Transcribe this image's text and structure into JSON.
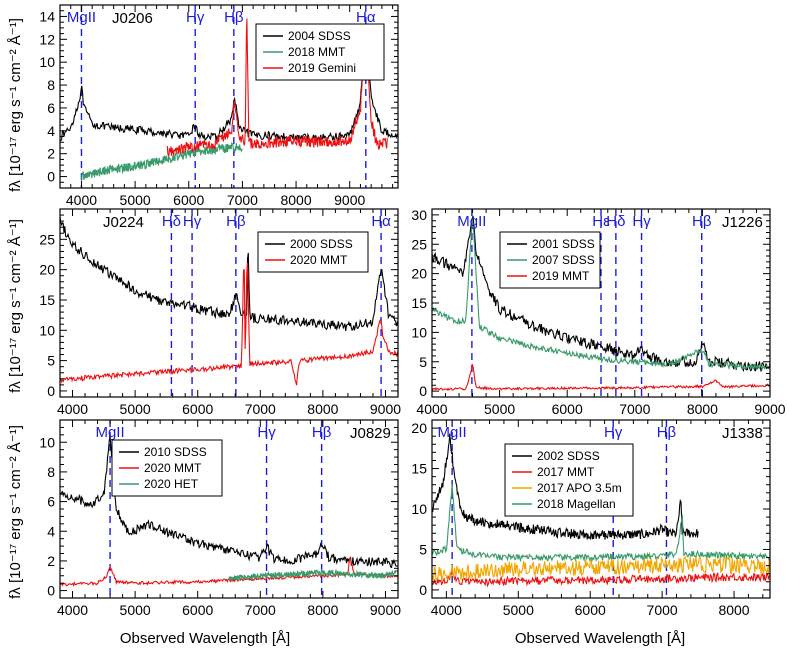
{
  "figure": {
    "xlabel": "Observed Wavelength [Å]",
    "ylabel": "fλ [10⁻¹⁷ erg s⁻¹ cm⁻² Å⁻¹]"
  },
  "colors": {
    "SDSS": "#000000",
    "MMT": "#ee1010",
    "HET": "#3a9a6a",
    "Gemini": "#ee1010",
    "APO": "#f2a600",
    "Magellan": "#3a9a6a",
    "line": "#1c1cdc"
  },
  "chart_data": [
    {
      "type": "line",
      "name": "J0206",
      "xlim": [
        3600,
        9900
      ],
      "ylim": [
        -1,
        15
      ],
      "xticks": [
        4000,
        5000,
        6000,
        7000,
        8000,
        9000
      ],
      "yticks": [
        0,
        2,
        4,
        6,
        8,
        10,
        12,
        14
      ],
      "lines": [
        {
          "label": "MgII",
          "x": 4000
        },
        {
          "label": "Hγ",
          "x": 6120
        },
        {
          "label": "Hβ",
          "x": 6840
        },
        {
          "label": "Hα",
          "x": 9300
        }
      ],
      "series": [
        {
          "name": "2004 SDSS",
          "color": "#000000",
          "x": [
            3600,
            3800,
            3950,
            4000,
            4050,
            4200,
            4500,
            5000,
            5500,
            6000,
            6100,
            6200,
            6500,
            6800,
            6850,
            6950,
            7200,
            7500,
            8000,
            8500,
            9000,
            9200,
            9300,
            9400,
            9600,
            9900
          ],
          "y": [
            3.4,
            4.3,
            6.5,
            7.8,
            6.0,
            4.6,
            4.3,
            4.1,
            3.8,
            3.5,
            4.5,
            3.6,
            3.4,
            5.0,
            7.0,
            4.1,
            3.6,
            3.6,
            3.4,
            3.4,
            3.6,
            6.5,
            13.2,
            7.0,
            3.9,
            3.7
          ],
          "noise": 0.35
        },
        {
          "name": "2018 MMT",
          "color": "#3a9a6a",
          "x": [
            4000,
            4500,
            5000,
            5500,
            6000,
            6500,
            7000
          ],
          "y": [
            0.0,
            0.6,
            0.9,
            1.4,
            2.0,
            2.4,
            2.6
          ],
          "noise": 0.4
        },
        {
          "name": "2019 Gemini",
          "color": "#ee1010",
          "x": [
            5600,
            6000,
            6500,
            6800,
            6850,
            6950,
            7050,
            7080,
            7120,
            7200,
            7500,
            8000,
            8500,
            9000,
            9200,
            9300,
            9350,
            9400,
            9500,
            9700
          ],
          "y": [
            2.2,
            2.6,
            2.9,
            4.2,
            6.6,
            3.4,
            3.0,
            15.0,
            3.0,
            2.9,
            3.0,
            3.1,
            3.0,
            3.1,
            6.0,
            12.5,
            9.0,
            5.0,
            2.8,
            2.9
          ],
          "noise": 0.5
        }
      ]
    },
    {
      "type": "line",
      "name": "J0224",
      "xlim": [
        3800,
        9200
      ],
      "ylim": [
        -1,
        30
      ],
      "xticks": [
        4000,
        5000,
        6000,
        7000,
        8000,
        9000
      ],
      "yticks": [
        0,
        5,
        10,
        15,
        20,
        25
      ],
      "lines": [
        {
          "label": "Hδ",
          "x": 5580
        },
        {
          "label": "Hγ",
          "x": 5910
        },
        {
          "label": "Hβ",
          "x": 6610
        },
        {
          "label": "Hα",
          "x": 8930
        }
      ],
      "series": [
        {
          "name": "2000 SDSS",
          "color": "#000000",
          "x": [
            3800,
            4000,
            4500,
            5000,
            5500,
            5900,
            6000,
            6500,
            6620,
            6700,
            6790,
            6800,
            6830,
            6900,
            7200,
            7500,
            8000,
            8500,
            8800,
            8930,
            9050,
            9200
          ],
          "y": [
            28,
            24,
            20,
            16.5,
            14.5,
            14.0,
            13.5,
            12.5,
            16.0,
            12.8,
            12.5,
            27.5,
            12.5,
            12.0,
            11.8,
            11.5,
            11.0,
            10.5,
            11.5,
            20.5,
            12.5,
            11.0
          ],
          "noise": 0.8
        },
        {
          "name": "2020 MMT",
          "color": "#ee1010",
          "x": [
            3800,
            4500,
            5000,
            5500,
            6000,
            6500,
            6700,
            6740,
            6760,
            6790,
            6830,
            7000,
            7500,
            7580,
            7620,
            7700,
            8000,
            8500,
            8800,
            8920,
            8960,
            9050,
            9200
          ],
          "y": [
            1.8,
            2.4,
            2.8,
            3.2,
            3.5,
            4.0,
            4.2,
            24.0,
            4.5,
            24.0,
            4.5,
            4.6,
            4.8,
            1.0,
            4.8,
            5.0,
            5.4,
            5.8,
            6.5,
            12.0,
            9.0,
            6.5,
            6.0
          ],
          "noise": 0.4
        }
      ]
    },
    {
      "type": "line",
      "name": "J1226",
      "xlim": [
        4000,
        9000
      ],
      "ylim": [
        -1,
        31
      ],
      "xticks": [
        4000,
        5000,
        6000,
        7000,
        8000,
        9000
      ],
      "yticks": [
        0,
        5,
        10,
        15,
        20,
        25,
        30
      ],
      "lines": [
        {
          "label": "MgII",
          "x": 4590
        },
        {
          "label": "Hε",
          "x": 6500
        },
        {
          "label": "Hδ",
          "x": 6720
        },
        {
          "label": "Hγ",
          "x": 7100
        },
        {
          "label": "Hβ",
          "x": 7990
        }
      ],
      "series": [
        {
          "name": "2001 SDSS",
          "color": "#000000",
          "x": [
            4000,
            4300,
            4450,
            4550,
            4600,
            4650,
            4800,
            5000,
            5500,
            6000,
            6500,
            7000,
            7100,
            7200,
            7500,
            7900,
            8000,
            8100,
            8500,
            9000
          ],
          "y": [
            23,
            21,
            20,
            26,
            30,
            24,
            18,
            14,
            11,
            9,
            7.5,
            6.0,
            7.5,
            5.8,
            5.0,
            5.0,
            8.0,
            5.0,
            4.5,
            4.0
          ],
          "noise": 0.9
        },
        {
          "name": "2007 SDSS",
          "color": "#3a9a6a",
          "x": [
            4000,
            4300,
            4500,
            4600,
            4700,
            5000,
            5500,
            6000,
            6500,
            7000,
            7500,
            8000,
            8100,
            8500,
            9000
          ],
          "y": [
            14,
            12,
            12,
            30,
            11,
            9,
            7.5,
            6.5,
            5.5,
            5.0,
            4.6,
            7.0,
            4.6,
            4.3,
            4.0
          ],
          "noise": 0.5
        },
        {
          "name": "2019 MMT",
          "color": "#ee1010",
          "x": [
            4000,
            4500,
            4570,
            4600,
            4650,
            5000,
            6000,
            7000,
            8000,
            8200,
            8300,
            9000
          ],
          "y": [
            0.3,
            0.4,
            3.0,
            4.8,
            0.6,
            0.4,
            0.5,
            0.6,
            0.8,
            1.8,
            0.7,
            1.0
          ],
          "noise": 0.2
        }
      ]
    },
    {
      "type": "line",
      "name": "J0829",
      "xlim": [
        3800,
        9200
      ],
      "ylim": [
        -0.5,
        11.5
      ],
      "xticks": [
        4000,
        5000,
        6000,
        7000,
        8000,
        9000
      ],
      "yticks": [
        0,
        2,
        4,
        6,
        8,
        10
      ],
      "lines": [
        {
          "label": "MgII",
          "x": 4600
        },
        {
          "label": "Hγ",
          "x": 7100
        },
        {
          "label": "Hβ",
          "x": 7980
        }
      ],
      "series": [
        {
          "name": "2010 SDSS",
          "color": "#000000",
          "x": [
            3800,
            4000,
            4300,
            4500,
            4600,
            4700,
            4900,
            5200,
            5600,
            6000,
            6500,
            7000,
            7100,
            7200,
            7500,
            7900,
            7980,
            8100,
            8500,
            9000,
            9200
          ],
          "y": [
            6.5,
            6.3,
            5.8,
            6.5,
            10.5,
            5.5,
            3.8,
            4.5,
            3.8,
            3.2,
            2.7,
            2.2,
            3.0,
            2.2,
            2.0,
            2.5,
            3.3,
            2.2,
            2.0,
            1.9,
            1.7
          ],
          "noise": 0.3
        },
        {
          "name": "2020 MMT",
          "color": "#ee1010",
          "x": [
            3800,
            4400,
            4550,
            4600,
            4700,
            5000,
            6000,
            7000,
            8000,
            8400,
            8430,
            8500,
            9000,
            9200
          ],
          "y": [
            0.4,
            0.5,
            1.0,
            1.6,
            0.6,
            0.5,
            0.6,
            0.8,
            1.0,
            1.1,
            2.3,
            1.1,
            1.0,
            1.0
          ],
          "noise": 0.1
        },
        {
          "name": "2020 HET",
          "color": "#3a9a6a",
          "x": [
            6500,
            7000,
            7500,
            8000,
            8500,
            9000,
            9200
          ],
          "y": [
            0.8,
            1.0,
            1.1,
            1.2,
            1.1,
            1.0,
            1.2
          ],
          "noise": 0.2
        }
      ]
    },
    {
      "type": "line",
      "name": "J1338",
      "xlim": [
        3800,
        8500
      ],
      "ylim": [
        -1,
        21
      ],
      "xticks": [
        4000,
        5000,
        6000,
        7000,
        8000
      ],
      "yticks": [
        0,
        5,
        10,
        15,
        20
      ],
      "lines": [
        {
          "label": "MgII",
          "x": 4080
        },
        {
          "label": "Hγ",
          "x": 6320
        },
        {
          "label": "Hβ",
          "x": 7060
        }
      ],
      "series": [
        {
          "name": "2002 SDSS",
          "color": "#000000",
          "x": [
            3800,
            3950,
            4050,
            4100,
            4200,
            4400,
            4800,
            5200,
            5600,
            6000,
            6400,
            6800,
            7000,
            7100,
            7200,
            7260,
            7280,
            7350,
            7500
          ],
          "y": [
            10,
            13,
            19,
            15,
            9.5,
            8.5,
            8.0,
            7.5,
            7.0,
            6.8,
            6.8,
            6.9,
            7.5,
            7.0,
            7.0,
            11.0,
            7.2,
            7.0,
            7.0
          ],
          "noise": 0.6
        },
        {
          "name": "2017 MMT",
          "color": "#ee1010",
          "x": [
            3800,
            4000,
            4080,
            4150,
            4500,
            5000,
            6000,
            7000,
            8000,
            8500
          ],
          "y": [
            1.0,
            1.2,
            2.0,
            1.2,
            1.0,
            1.1,
            1.2,
            1.4,
            1.6,
            1.5
          ],
          "noise": 0.5
        },
        {
          "name": "2017 APO 3.5m",
          "color": "#f2a600",
          "x": [
            3800,
            4000,
            4200,
            4500,
            5000,
            6000,
            7000,
            7500,
            8000,
            8500
          ],
          "y": [
            2.0,
            2.2,
            2.2,
            2.4,
            2.6,
            2.8,
            3.0,
            3.2,
            3.0,
            2.8
          ],
          "noise": 1.0
        },
        {
          "name": "2018 Magellan",
          "color": "#3a9a6a",
          "x": [
            3800,
            4000,
            4080,
            4150,
            4500,
            5000,
            6000,
            7000,
            7200,
            7280,
            7300,
            8000,
            8500
          ],
          "y": [
            4.5,
            5.0,
            13.0,
            5.0,
            4.2,
            4.0,
            4.0,
            4.2,
            4.5,
            9.0,
            4.5,
            4.2,
            4.0
          ],
          "noise": 0.4
        }
      ]
    }
  ]
}
